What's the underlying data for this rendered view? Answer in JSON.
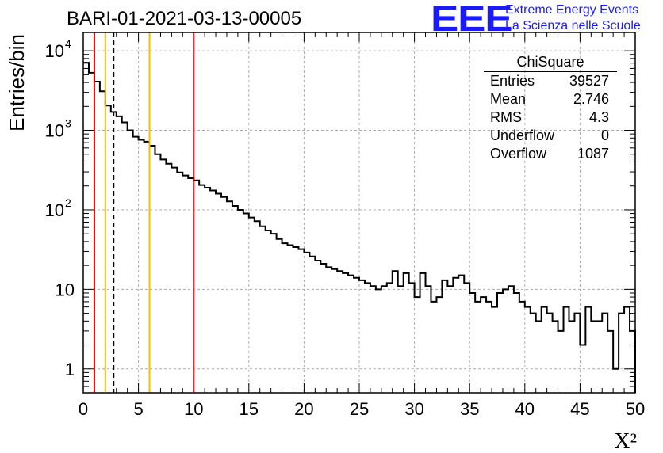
{
  "title": "BARI-01-2021-03-13-00005",
  "logo": {
    "mark": "EEE",
    "line1": "Extreme Energy Events",
    "line2": "La Scienza nelle Scuole",
    "color": "#1a1aff"
  },
  "stats": {
    "name": "ChiSquare",
    "rows": [
      {
        "label": "Entries",
        "value": "39527"
      },
      {
        "label": "Mean",
        "value": "2.746"
      },
      {
        "label": "RMS",
        "value": "4.3"
      },
      {
        "label": "Underflow",
        "value": "0"
      },
      {
        "label": "Overflow",
        "value": "1087"
      }
    ]
  },
  "chart_data": {
    "type": "histogram",
    "title": "BARI-01-2021-03-13-00005",
    "xlabel": "X²",
    "ylabel": "Entries/bin",
    "xlim": [
      0,
      50
    ],
    "ylim": [
      0.5,
      17000
    ],
    "yscale": "log",
    "bin_width": 0.5,
    "grid": true,
    "xticks": [
      0,
      5,
      10,
      15,
      20,
      25,
      30,
      35,
      40,
      45,
      50
    ],
    "yticks": [
      {
        "value": 1,
        "label": "1"
      },
      {
        "value": 10,
        "label": "10"
      },
      {
        "value": 100,
        "label": "10",
        "exp": "2"
      },
      {
        "value": 1000,
        "label": "10",
        "exp": "3"
      },
      {
        "value": 10000,
        "label": "10",
        "exp": "4"
      }
    ],
    "values": [
      7100,
      5300,
      4100,
      3100,
      2050,
      1700,
      1500,
      1260,
      1000,
      830,
      760,
      720,
      640,
      500,
      430,
      380,
      340,
      295,
      270,
      250,
      235,
      205,
      190,
      175,
      160,
      145,
      128,
      112,
      100,
      90,
      80,
      72,
      62,
      55,
      50,
      43,
      38,
      36,
      34,
      32,
      29,
      26,
      23,
      21,
      19,
      18,
      17,
      16,
      15,
      14,
      13,
      12,
      11,
      10,
      11,
      12,
      17,
      11,
      16,
      12,
      8,
      16,
      11,
      7,
      8,
      13,
      11,
      14,
      15,
      12,
      9,
      7,
      8,
      7,
      6,
      9,
      10,
      11,
      9,
      7,
      6,
      5,
      4,
      6,
      5,
      4,
      3,
      6,
      4,
      5,
      2,
      6,
      4,
      4,
      5,
      3,
      1,
      5,
      6,
      3
    ],
    "vertical_lines": [
      {
        "x": 1,
        "color": "#e00000",
        "style": "solid"
      },
      {
        "x": 2,
        "color": "#f0c000",
        "style": "solid"
      },
      {
        "x": 2.746,
        "color": "#000000",
        "style": "dashed"
      },
      {
        "x": 6,
        "color": "#f0c000",
        "style": "solid"
      },
      {
        "x": 10,
        "color": "#e00000",
        "style": "solid"
      }
    ]
  }
}
